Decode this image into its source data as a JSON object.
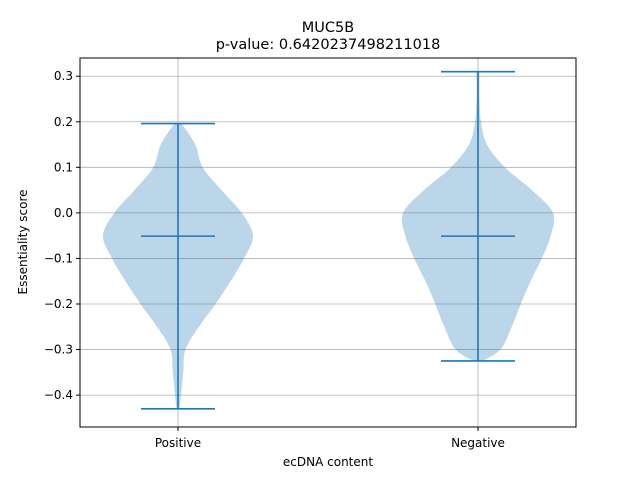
{
  "chart_data": {
    "type": "violin",
    "title": "MUC5B",
    "subtitle": "p-value: 0.6420237498211018",
    "xlabel": "ecDNA content",
    "ylabel": "Essentiality score",
    "categories": [
      "Positive",
      "Negative"
    ],
    "ylim": [
      -0.47,
      0.34
    ],
    "yticks": [
      -0.4,
      -0.3,
      -0.2,
      -0.1,
      0.0,
      0.1,
      0.2,
      0.3
    ],
    "ytick_labels": [
      "−0.4",
      "−0.3",
      "−0.2",
      "−0.1",
      "0.0",
      "0.1",
      "0.2",
      "0.3"
    ],
    "grid": true,
    "series": [
      {
        "category": "Positive",
        "min": -0.43,
        "max": 0.196,
        "median": -0.051,
        "density": [
          [
            -0.43,
            0.02
          ],
          [
            -0.4,
            0.04
          ],
          [
            -0.35,
            0.07
          ],
          [
            -0.3,
            0.1
          ],
          [
            -0.25,
            0.28
          ],
          [
            -0.2,
            0.5
          ],
          [
            -0.15,
            0.7
          ],
          [
            -0.1,
            0.88
          ],
          [
            -0.05,
            1.0
          ],
          [
            0.0,
            0.85
          ],
          [
            0.05,
            0.58
          ],
          [
            0.1,
            0.33
          ],
          [
            0.15,
            0.23
          ],
          [
            0.196,
            0.05
          ]
        ]
      },
      {
        "category": "Negative",
        "min": -0.325,
        "max": 0.31,
        "median": -0.051,
        "density": [
          [
            -0.325,
            0.06
          ],
          [
            -0.3,
            0.3
          ],
          [
            -0.25,
            0.45
          ],
          [
            -0.2,
            0.57
          ],
          [
            -0.15,
            0.7
          ],
          [
            -0.1,
            0.85
          ],
          [
            -0.05,
            0.97
          ],
          [
            0.0,
            1.0
          ],
          [
            0.05,
            0.72
          ],
          [
            0.1,
            0.36
          ],
          [
            0.15,
            0.12
          ],
          [
            0.2,
            0.04
          ],
          [
            0.25,
            0.02
          ],
          [
            0.31,
            0.02
          ]
        ]
      }
    ],
    "colors": {
      "violin": "#1f77b4",
      "grid": "#b0b0b0"
    }
  }
}
